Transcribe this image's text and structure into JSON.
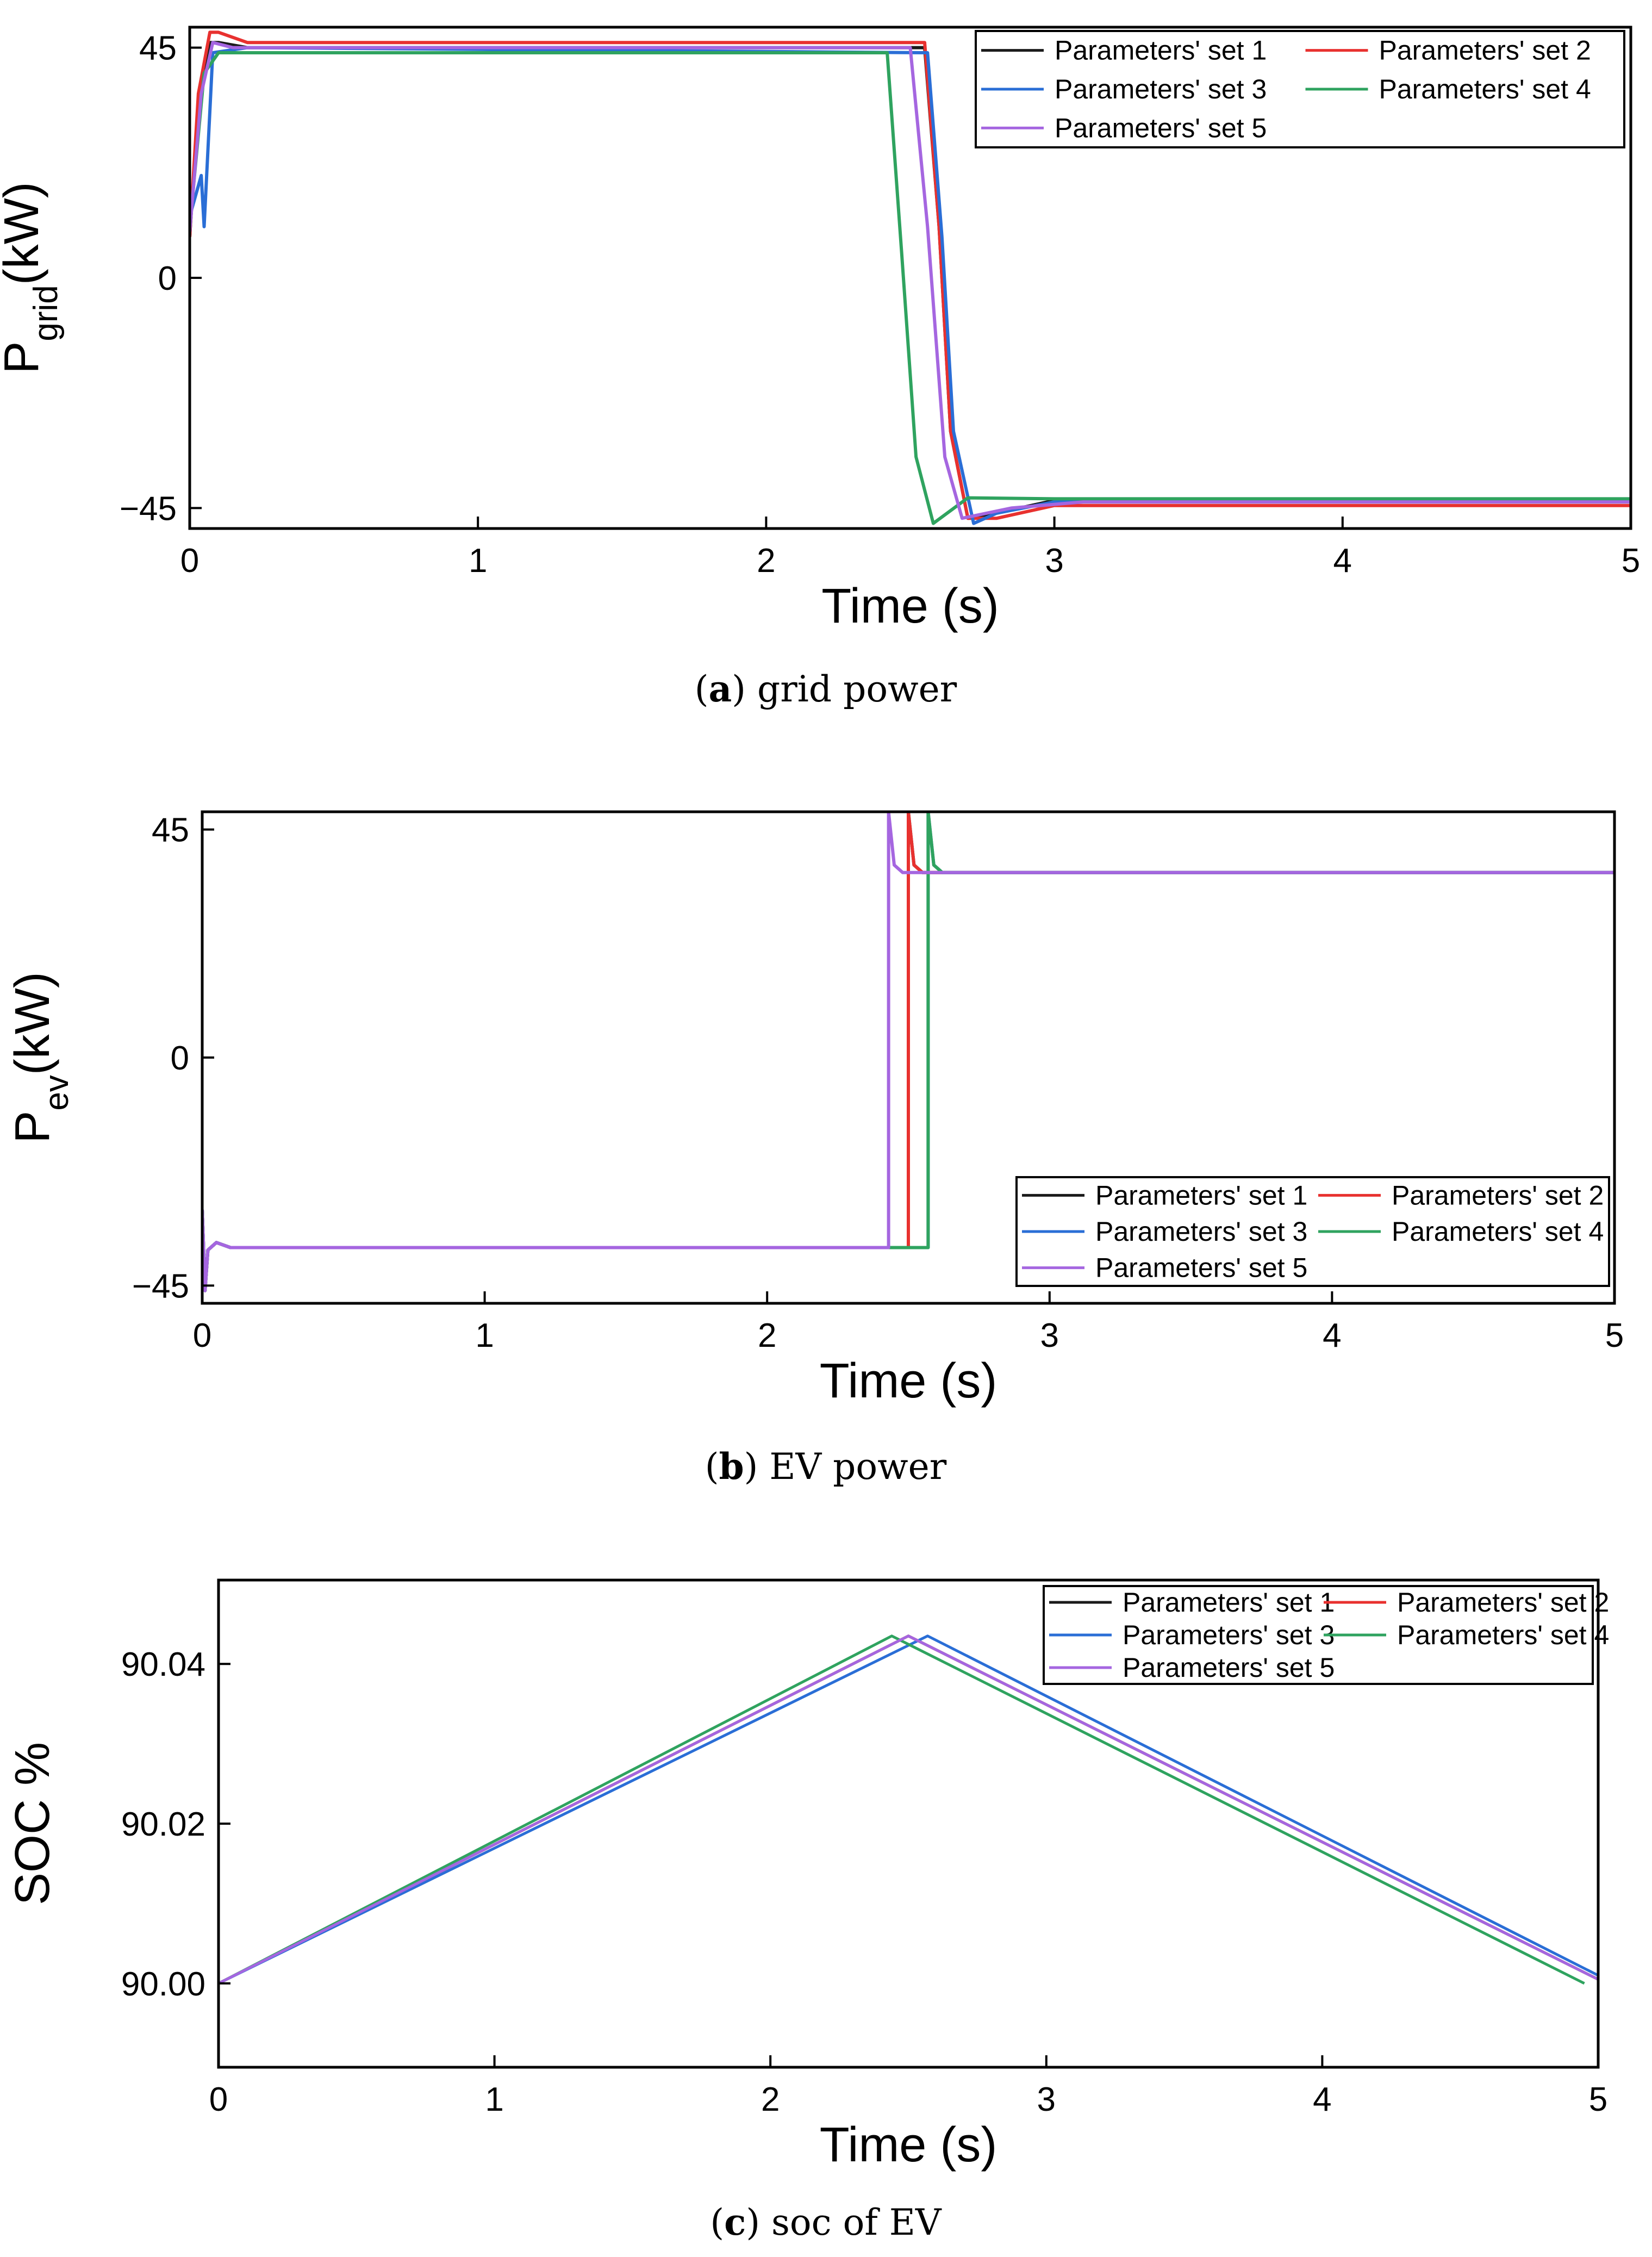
{
  "colors": {
    "set1": "#1a1a1a",
    "set2": "#e8312f",
    "set3": "#2a6ed6",
    "set4": "#2fa35f",
    "set5": "#a566e0",
    "axis": "#000000"
  },
  "chart_data": [
    {
      "id": "a",
      "type": "line",
      "xlabel": "Time (s)",
      "ylabel_main": "P",
      "ylabel_sub": "grid",
      "ylabel_unit": "(kW)",
      "xlim": [
        0,
        5
      ],
      "ylim": [
        -49,
        49
      ],
      "xticks": [
        0,
        1,
        2,
        3,
        4,
        5
      ],
      "xtick_labels": [
        "0",
        "1",
        "2",
        "3",
        "4",
        "5"
      ],
      "yticks": [
        -45,
        0,
        45
      ],
      "ytick_labels": [
        "−45",
        "0",
        "45"
      ],
      "legend_position": "top-right",
      "caption_label": "a",
      "caption_text": " grid power",
      "series": [
        {
          "name": "Parameters' set 1",
          "color_key": "set1",
          "x": [
            0,
            0.03,
            0.07,
            0.1,
            0.2,
            2.55,
            2.6,
            2.64,
            2.7,
            2.8,
            3.0,
            5.0
          ],
          "y": [
            8,
            34,
            46,
            46,
            45,
            45,
            10,
            -30,
            -47,
            -46,
            -43.5,
            -43.5
          ]
        },
        {
          "name": "Parameters' set 2",
          "color_key": "set2",
          "x": [
            0,
            0.03,
            0.07,
            0.1,
            0.2,
            2.55,
            2.6,
            2.64,
            2.7,
            2.8,
            3.0,
            5.0
          ],
          "y": [
            8,
            36,
            48,
            48,
            46,
            46,
            10,
            -30,
            -47,
            -47,
            -44.5,
            -44.5
          ]
        },
        {
          "name": "Parameters' set 3",
          "color_key": "set3",
          "x": [
            0,
            0.04,
            0.05,
            0.08,
            0.2,
            2.56,
            2.61,
            2.65,
            2.72,
            2.8,
            3.0,
            5.0
          ],
          "y": [
            12,
            20,
            10,
            44,
            45,
            44,
            8,
            -30,
            -48,
            -46,
            -43.8,
            -43.8
          ]
        },
        {
          "name": "Parameters' set 4",
          "color_key": "set4",
          "x": [
            0,
            0.05,
            0.1,
            0.2,
            2.42,
            2.47,
            2.52,
            2.58,
            2.7,
            3.0,
            5.0
          ],
          "y": [
            10,
            40,
            44,
            44,
            44,
            5,
            -35,
            -48,
            -43,
            -43.2,
            -43.2
          ]
        },
        {
          "name": "Parameters' set 5",
          "color_key": "set5",
          "x": [
            0,
            0.04,
            0.08,
            0.15,
            2.5,
            2.56,
            2.62,
            2.68,
            2.85,
            3.1,
            5.0
          ],
          "y": [
            9,
            36,
            46,
            45,
            45,
            10,
            -35,
            -47,
            -45,
            -43.8,
            -43.8
          ]
        }
      ]
    },
    {
      "id": "b",
      "type": "line",
      "xlabel": "Time (s)",
      "ylabel_main": "P",
      "ylabel_sub": "ev",
      "ylabel_unit": "(kW)",
      "xlim": [
        0,
        5
      ],
      "ylim": [
        -48.5,
        48.5
      ],
      "xticks": [
        0,
        1,
        2,
        3,
        4,
        5
      ],
      "xtick_labels": [
        "0",
        "1",
        "2",
        "3",
        "4",
        "5"
      ],
      "yticks": [
        -45,
        0,
        45
      ],
      "ytick_labels": [
        "−45",
        "0",
        "45"
      ],
      "legend_position": "bottom-right",
      "caption_label": "b",
      "caption_text": " EV power",
      "series": [
        {
          "name": "Parameters' set 1",
          "color_key": "set1",
          "x": [
            0,
            0.01,
            0.02,
            0.05,
            0.1,
            2.5,
            2.5,
            2.52,
            2.55,
            2.7,
            5.0
          ],
          "y": [
            -30,
            -46,
            -38,
            -36.5,
            -37.5,
            -37.5,
            48.5,
            38,
            36.5,
            36.5,
            36.5
          ]
        },
        {
          "name": "Parameters' set 2",
          "color_key": "set2",
          "x": [
            0,
            0.01,
            0.02,
            0.05,
            0.1,
            2.5,
            2.5,
            2.52,
            2.55,
            2.7,
            5.0
          ],
          "y": [
            -30,
            -46,
            -38,
            -36.5,
            -37.5,
            -37.5,
            48.5,
            38,
            36.5,
            36.5,
            36.5
          ]
        },
        {
          "name": "Parameters' set 3",
          "color_key": "set3",
          "x": [
            0,
            0.01,
            0.02,
            0.05,
            0.1,
            2.57,
            2.57,
            2.59,
            2.62,
            2.8,
            5.0
          ],
          "y": [
            -30,
            -46,
            -38,
            -36.5,
            -37.5,
            -37.5,
            48.5,
            38,
            36.5,
            36.5,
            36.5
          ]
        },
        {
          "name": "Parameters' set 4",
          "color_key": "set4",
          "x": [
            0,
            0.01,
            0.02,
            0.05,
            0.1,
            2.57,
            2.57,
            2.59,
            2.62,
            2.8,
            5.0
          ],
          "y": [
            -30,
            -46,
            -38,
            -36.5,
            -37.5,
            -37.5,
            48.5,
            38,
            36.5,
            36.5,
            36.5
          ]
        },
        {
          "name": "Parameters' set 5",
          "color_key": "set5",
          "x": [
            0,
            0.01,
            0.02,
            0.05,
            0.1,
            2.43,
            2.43,
            2.45,
            2.48,
            2.6,
            5.0
          ],
          "y": [
            -30,
            -46,
            -38,
            -36.5,
            -37.5,
            -37.5,
            48.5,
            38,
            36.5,
            36.5,
            36.5
          ]
        }
      ]
    },
    {
      "id": "c",
      "type": "line",
      "xlabel": "Time (s)",
      "ylabel_main": "SOC %",
      "ylabel_sub": "",
      "ylabel_unit": "",
      "xlim": [
        0,
        5
      ],
      "ylim": [
        89.9895,
        90.0505
      ],
      "xticks": [
        0,
        1,
        2,
        3,
        4,
        5
      ],
      "xtick_labels": [
        "0",
        "1",
        "2",
        "3",
        "4",
        "5"
      ],
      "yticks": [
        90.0,
        90.02,
        90.04
      ],
      "ytick_labels": [
        "90.00",
        "90.02",
        "90.04"
      ],
      "legend_position": "top-right",
      "caption_label": "c",
      "caption_text": " soc of EV",
      "series": [
        {
          "name": "Parameters' set 1",
          "color_key": "set1",
          "x": [
            0,
            2.5,
            5.0
          ],
          "y": [
            90.0,
            90.0435,
            90.0005
          ]
        },
        {
          "name": "Parameters' set 2",
          "color_key": "set2",
          "x": [
            0,
            2.5,
            5.0
          ],
          "y": [
            90.0,
            90.0435,
            90.0005
          ]
        },
        {
          "name": "Parameters' set 3",
          "color_key": "set3",
          "x": [
            0,
            2.57,
            5.0
          ],
          "y": [
            90.0,
            90.0435,
            90.001
          ]
        },
        {
          "name": "Parameters' set 4",
          "color_key": "set4",
          "x": [
            0,
            2.44,
            4.95
          ],
          "y": [
            90.0,
            90.0435,
            90.0
          ]
        },
        {
          "name": "Parameters' set 5",
          "color_key": "set5",
          "x": [
            0,
            2.5,
            5.0
          ],
          "y": [
            90.0,
            90.0435,
            90.0005
          ]
        }
      ]
    }
  ]
}
